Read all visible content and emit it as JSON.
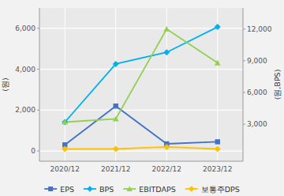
{
  "chart_data": {
    "type": "line",
    "categories": [
      "2020/12",
      "2021/12",
      "2022/12",
      "2023/12"
    ],
    "series": [
      {
        "name": "EPS",
        "color": "#4472c4",
        "marker": "square",
        "values": [
          300,
          2200,
          350,
          450
        ]
      },
      {
        "name": "BPS",
        "color": "#00b0f0",
        "marker": "diamond",
        "axis": "y2",
        "values": [
          3200,
          8700,
          9800,
          12200
        ]
      },
      {
        "name": "EBITDAPS",
        "color": "#92d050",
        "marker": "triangle",
        "axis": "y2",
        "values": [
          3200,
          3500,
          12000,
          8800
        ]
      },
      {
        "name": "보통주DPS",
        "color": "#ffc000",
        "marker": "diamond",
        "values": [
          100,
          100,
          200,
          100
        ]
      }
    ],
    "y_label": "(원)",
    "y2_label": "(원,BPS)",
    "ylim": [
      -500,
      7000
    ],
    "yticks": [
      0,
      {
        "value": 2000,
        "label": "2,000"
      },
      {
        "value": 4000,
        "label": "4,000"
      },
      {
        "value": 6000,
        "label": "6,000"
      }
    ],
    "y2lim": [
      -500,
      14000
    ],
    "y2ticks": [
      {
        "value": 3000,
        "label": "3,000"
      },
      {
        "value": 6000,
        "label": "6,000"
      },
      {
        "value": 9000,
        "label": "9,000"
      },
      {
        "value": 12000,
        "label": "12,000"
      }
    ],
    "grid": true,
    "legend": "bottom"
  }
}
